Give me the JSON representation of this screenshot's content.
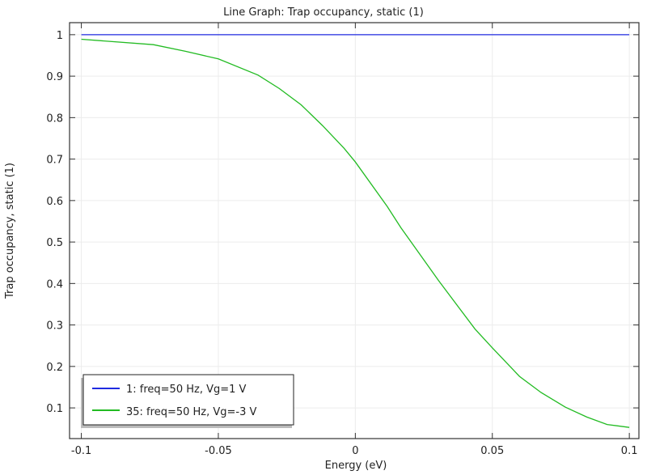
{
  "chart_data": {
    "type": "line",
    "title": "Line Graph: Trap occupancy, static (1)",
    "xlabel": "Energy (eV)",
    "ylabel": "Trap occupancy, static (1)",
    "xlim": [
      -0.1043,
      0.1035
    ],
    "ylim": [
      0.026,
      1.029
    ],
    "xticks": [
      -0.1,
      -0.05,
      0,
      0.05,
      0.1
    ],
    "xtick_labels": [
      "-0.1",
      "-0.05",
      "0",
      "0.05",
      "0.1"
    ],
    "yticks": [
      0.1,
      0.2,
      0.3,
      0.4,
      0.5,
      0.6,
      0.7,
      0.8,
      0.9,
      1
    ],
    "ytick_labels": [
      "0.1",
      "0.2",
      "0.3",
      "0.4",
      "0.5",
      "0.6",
      "0.7",
      "0.8",
      "0.9",
      "1"
    ],
    "grid": true,
    "legend_position": "bottom-left",
    "series": [
      {
        "name": "1: freq=50 Hz, Vg=1 V",
        "color": "#1f2be0",
        "x": [
          -0.1,
          0.1
        ],
        "y": [
          1,
          1
        ]
      },
      {
        "name": "35: freq=50 Hz, Vg=-3 V",
        "color": "#22bb22",
        "x": [
          -0.1,
          -0.0737,
          -0.062,
          -0.05,
          -0.0355,
          -0.0277,
          -0.0198,
          -0.012,
          -0.0041,
          0,
          0.0116,
          0.0166,
          0.0304,
          0.0437,
          0.05,
          0.0599,
          0.0678,
          0.0766,
          0.0845,
          0.0919,
          0.1
        ],
        "y": [
          0.989,
          0.976,
          0.96,
          0.9415,
          0.9025,
          0.87,
          0.831,
          0.781,
          0.726,
          0.693,
          0.586,
          0.535,
          0.407,
          0.29,
          0.245,
          0.176,
          0.137,
          0.102,
          0.078,
          0.06,
          0.053
        ]
      }
    ]
  }
}
